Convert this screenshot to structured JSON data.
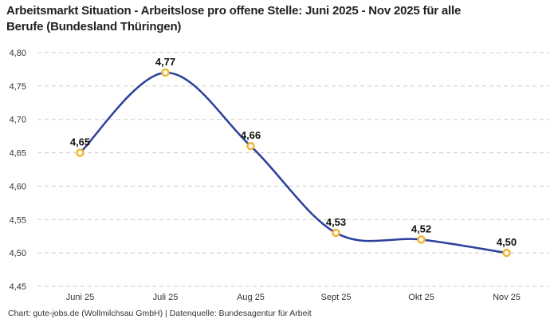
{
  "title": {
    "line1": "Arbeitsmarkt Situation - Arbeitslose pro offene Stelle: Juni 2025 - Nov 2025 für alle",
    "line2": "Berufe (Bundesland Thüringen)"
  },
  "footer": "Chart: gute-jobs.de (Wollmilchsau GmbH) | Datenquelle: Bundesagentur für Arbeit",
  "colors": {
    "line": "#2b3f9c",
    "marker_ring": "#f0b429",
    "marker_fill": "#ffffff",
    "grid": "#cccccc",
    "tick_text": "#333333",
    "value_label": "#111111",
    "title_text": "#222222"
  },
  "chart_data": {
    "type": "line",
    "title": "Arbeitsmarkt Situation - Arbeitslose pro offene Stelle: Juni 2025 - Nov 2025 für alle Berufe (Bundesland Thüringen)",
    "categories": [
      "Juni 25",
      "Juli 25",
      "Aug 25",
      "Sept 25",
      "Okt 25",
      "Nov 25"
    ],
    "values": [
      4.65,
      4.77,
      4.66,
      4.53,
      4.52,
      4.5
    ],
    "value_labels": [
      "4,65",
      "4,77",
      "4,66",
      "4,53",
      "4,52",
      "4,50"
    ],
    "y_ticks": [
      "4,80",
      "4,75",
      "4,70",
      "4,65",
      "4,60",
      "4,55",
      "4,50",
      "4,45"
    ],
    "y_tick_values": [
      4.8,
      4.75,
      4.7,
      4.65,
      4.6,
      4.55,
      4.5,
      4.45
    ],
    "ylim": [
      4.45,
      4.8
    ],
    "xlabel": "",
    "ylabel": "",
    "grid": "horizontal-dashed",
    "legend": "none",
    "line_smooth": true
  }
}
